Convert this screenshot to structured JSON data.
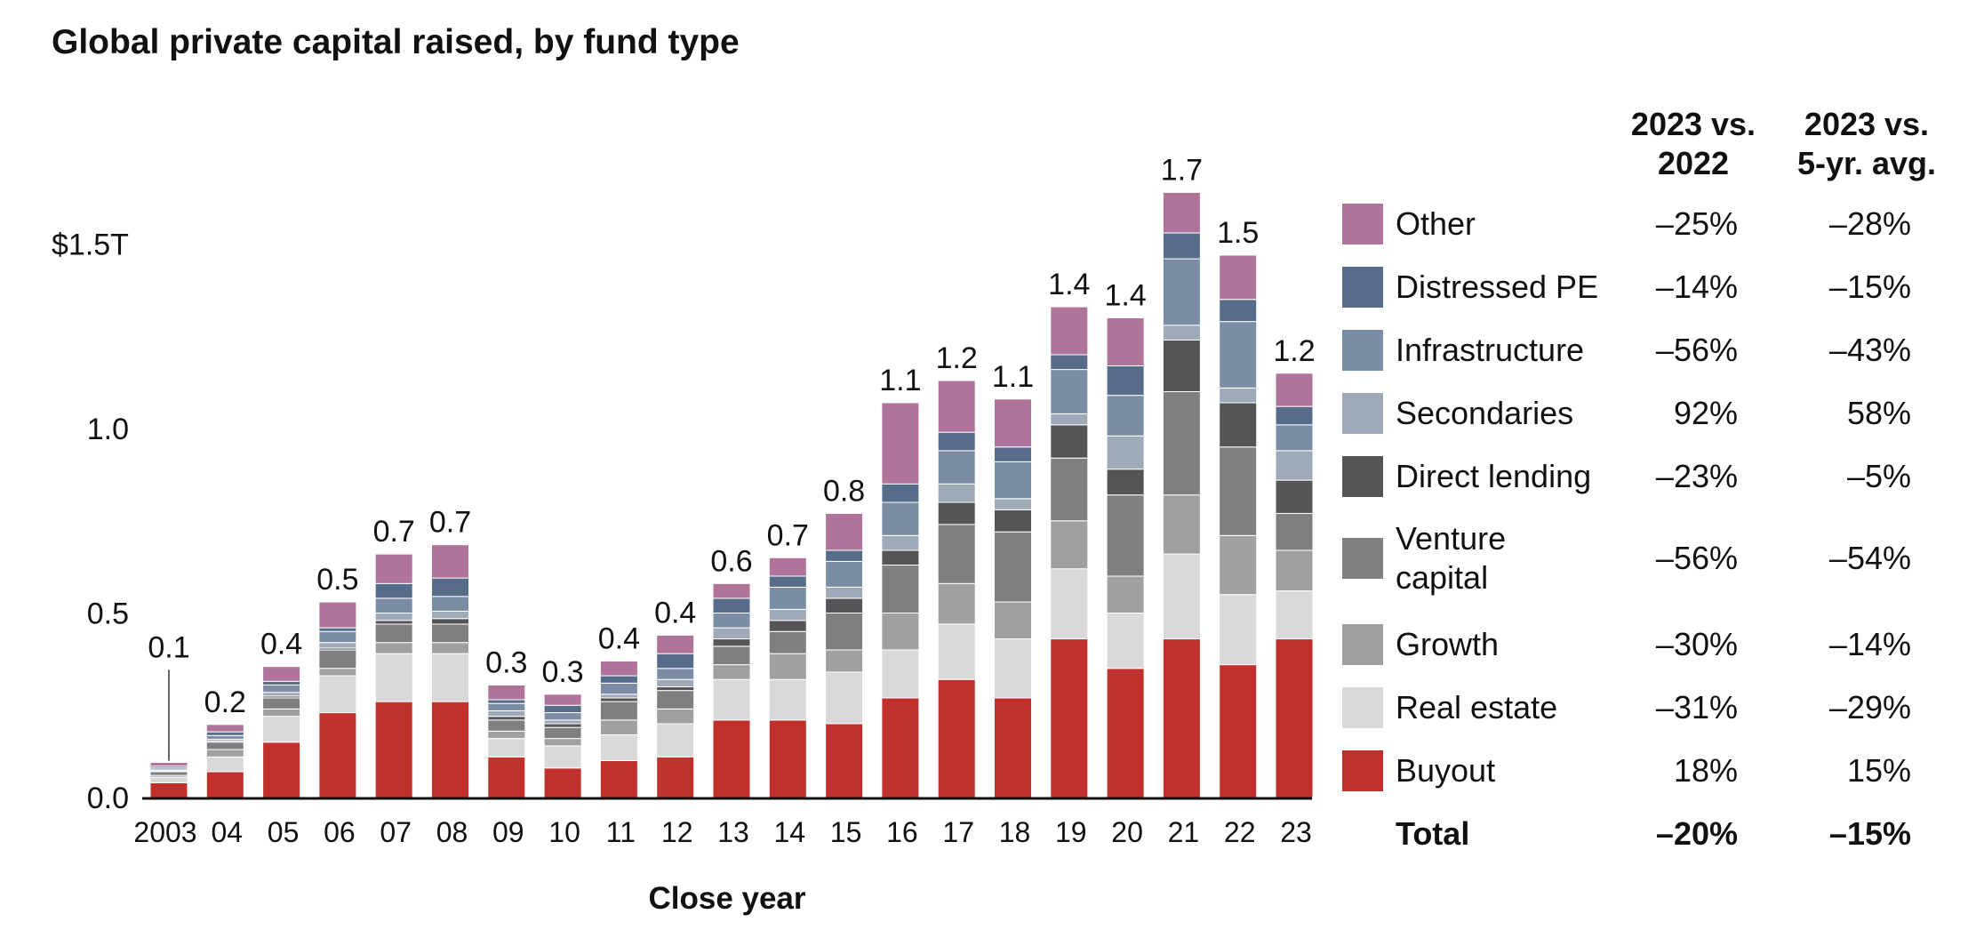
{
  "title": "Global private capital raised, by fund type",
  "chart_data": {
    "type": "bar",
    "stacked": true,
    "title": "Global private capital raised, by fund type",
    "xlabel": "Close year",
    "ylabel": "",
    "ylim": [
      0,
      1.5
    ],
    "y_ticks": [
      {
        "value": 0,
        "label": "0.0"
      },
      {
        "value": 0.5,
        "label": "0.5"
      },
      {
        "value": 1.0,
        "label": "1.0"
      },
      {
        "value": 1.5,
        "label": "$1.5T"
      }
    ],
    "categories": [
      "2003",
      "04",
      "05",
      "06",
      "07",
      "08",
      "09",
      "10",
      "11",
      "12",
      "13",
      "14",
      "15",
      "16",
      "17",
      "18",
      "19",
      "20",
      "21",
      "22",
      "23"
    ],
    "totals_labels": [
      "0.1",
      "0.2",
      "0.4",
      "0.5",
      "0.7",
      "0.7",
      "0.3",
      "0.3",
      "0.4",
      "0.4",
      "0.6",
      "0.7",
      "0.8",
      "1.1",
      "1.2",
      "1.1",
      "1.4",
      "1.4",
      "1.7",
      "1.5",
      "1.2"
    ],
    "series": [
      {
        "name": "Buyout",
        "color": "#c0312e",
        "values": [
          0.04,
          0.07,
          0.15,
          0.23,
          0.26,
          0.26,
          0.11,
          0.08,
          0.1,
          0.11,
          0.21,
          0.21,
          0.2,
          0.27,
          0.32,
          0.27,
          0.43,
          0.35,
          0.43,
          0.36,
          0.43
        ]
      },
      {
        "name": "Real estate",
        "color": "#d9d9d9",
        "values": [
          0.015,
          0.04,
          0.07,
          0.1,
          0.13,
          0.13,
          0.05,
          0.06,
          0.07,
          0.09,
          0.11,
          0.11,
          0.14,
          0.13,
          0.15,
          0.16,
          0.19,
          0.15,
          0.23,
          0.19,
          0.13
        ]
      },
      {
        "name": "Growth",
        "color": "#a0a0a0",
        "values": [
          0.005,
          0.02,
          0.02,
          0.02,
          0.03,
          0.03,
          0.02,
          0.02,
          0.04,
          0.04,
          0.04,
          0.07,
          0.06,
          0.1,
          0.11,
          0.1,
          0.13,
          0.1,
          0.16,
          0.16,
          0.11
        ]
      },
      {
        "name": "Venture capital",
        "color": "#7f7f82",
        "values": [
          0.01,
          0.02,
          0.03,
          0.05,
          0.05,
          0.05,
          0.03,
          0.03,
          0.05,
          0.05,
          0.05,
          0.06,
          0.1,
          0.13,
          0.16,
          0.19,
          0.17,
          0.22,
          0.28,
          0.24,
          0.1
        ]
      },
      {
        "name": "Direct lending",
        "color": "#555558",
        "values": [
          0.002,
          0.003,
          0.005,
          0.005,
          0.01,
          0.015,
          0.01,
          0.01,
          0.01,
          0.01,
          0.02,
          0.03,
          0.04,
          0.04,
          0.06,
          0.06,
          0.09,
          0.07,
          0.14,
          0.12,
          0.09
        ]
      },
      {
        "name": "Secondaries",
        "color": "#9eaab8",
        "values": [
          0.003,
          0.005,
          0.01,
          0.015,
          0.02,
          0.02,
          0.015,
          0.01,
          0.01,
          0.02,
          0.03,
          0.03,
          0.03,
          0.04,
          0.05,
          0.03,
          0.03,
          0.09,
          0.04,
          0.04,
          0.08
        ]
      },
      {
        "name": "Infrastructure",
        "color": "#7b8da5",
        "values": [
          0.005,
          0.01,
          0.02,
          0.03,
          0.04,
          0.04,
          0.02,
          0.02,
          0.03,
          0.03,
          0.04,
          0.06,
          0.07,
          0.09,
          0.09,
          0.1,
          0.12,
          0.11,
          0.18,
          0.18,
          0.07
        ]
      },
      {
        "name": "Distressed PE",
        "color": "#566c88",
        "values": [
          0.005,
          0.01,
          0.01,
          0.01,
          0.04,
          0.05,
          0.01,
          0.02,
          0.02,
          0.04,
          0.04,
          0.03,
          0.03,
          0.05,
          0.05,
          0.04,
          0.04,
          0.08,
          0.07,
          0.06,
          0.05
        ]
      },
      {
        "name": "Other",
        "color": "#b07399",
        "values": [
          0.01,
          0.02,
          0.04,
          0.07,
          0.08,
          0.09,
          0.04,
          0.03,
          0.04,
          0.05,
          0.04,
          0.05,
          0.1,
          0.22,
          0.14,
          0.13,
          0.13,
          0.13,
          0.11,
          0.12,
          0.09
        ]
      }
    ]
  },
  "table": {
    "col1_header": [
      "2023 vs.",
      "2022"
    ],
    "col2_header": [
      "2023 vs.",
      "5-yr. avg."
    ],
    "rows": [
      {
        "label": "Other",
        "color": "#b07399",
        "vs2022": "–25%",
        "vs5yr": "–28%"
      },
      {
        "label": "Distressed PE",
        "color": "#566c88",
        "vs2022": "–14%",
        "vs5yr": "–15%"
      },
      {
        "label": "Infrastructure",
        "color": "#7b8da5",
        "vs2022": "–56%",
        "vs5yr": "–43%"
      },
      {
        "label": "Secondaries",
        "color": "#9eaab8",
        "vs2022": "92%",
        "vs5yr": "58%"
      },
      {
        "label": "Direct lending",
        "color": "#555558",
        "vs2022": "–23%",
        "vs5yr": "–5%"
      },
      {
        "label": "Venture capital",
        "label_lines": [
          "Venture",
          "capital"
        ],
        "color": "#7f7f82",
        "vs2022": "–56%",
        "vs5yr": "–54%"
      },
      {
        "label": "Growth",
        "color": "#a0a0a0",
        "vs2022": "–30%",
        "vs5yr": "–14%"
      },
      {
        "label": "Real estate",
        "color": "#d9d9d9",
        "vs2022": "–31%",
        "vs5yr": "–29%"
      },
      {
        "label": "Buyout",
        "color": "#c0312e",
        "vs2022": "18%",
        "vs5yr": "15%"
      }
    ],
    "total": {
      "label": "Total",
      "vs2022": "–20%",
      "vs5yr": "–15%"
    }
  }
}
